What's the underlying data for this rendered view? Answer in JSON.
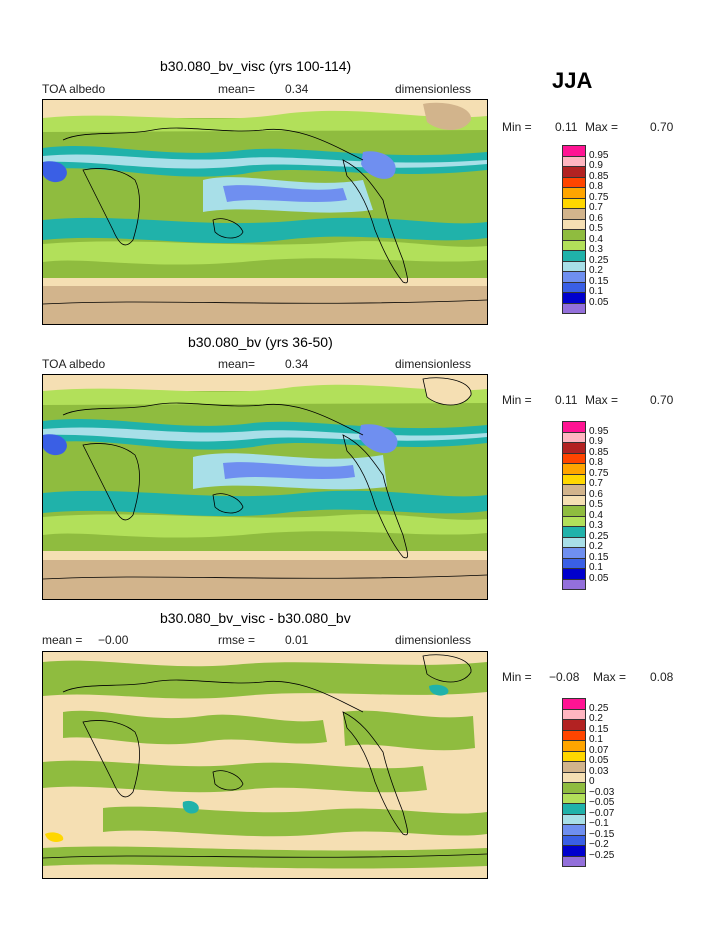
{
  "season": "JJA",
  "panels": [
    {
      "title": "b30.080_bv_visc (yrs 100-114)",
      "left_label": "TOA albedo",
      "mean_label": "mean=",
      "mean_value": "0.34",
      "units": "dimensionless",
      "min_label": "Min =",
      "min_value": "0.11",
      "max_label": "Max =",
      "max_value": "0.70"
    },
    {
      "title": "b30.080_bv (yrs 36-50)",
      "left_label": "TOA albedo",
      "mean_label": "mean=",
      "mean_value": "0.34",
      "units": "dimensionless",
      "min_label": "Min =",
      "min_value": "0.11",
      "max_label": "Max =",
      "max_value": "0.70"
    },
    {
      "title": "b30.080_bv_visc - b30.080_bv",
      "left_label": "mean =",
      "left_value": "−0.00",
      "rmse_label": "rmse =",
      "rmse_value": "0.01",
      "units": "dimensionless",
      "min_label": "Min =",
      "min_value": "−0.08",
      "max_label": "Max =",
      "max_value": "0.08"
    }
  ],
  "colors": {
    "c_005": "#9370db",
    "c_01": "#0000cd",
    "c_015": "#3a5fe5",
    "c_02": "#6f8ff0",
    "c_025": "#a8dfe8",
    "c_03": "#20b2aa",
    "c_04": "#b2e05a",
    "c_05": "#8fbc3f",
    "c_06": "#f5dfb3",
    "c_07": "#d2b48c",
    "c_075": "#ffd700",
    "c_08": "#ffa500",
    "c_085": "#ff4500",
    "c_09": "#b22222",
    "c_095": "#ffb6c1",
    "c_top": "#ff1493"
  },
  "chart_data": [
    {
      "type": "heatmap",
      "title": "b30.080_bv_visc (yrs 100-114)",
      "variable": "TOA albedo",
      "units": "dimensionless",
      "mean": 0.34,
      "min": 0.11,
      "max": 0.7,
      "legend_levels": [
        "0.95",
        "0.9",
        "0.85",
        "0.8",
        "0.75",
        "0.7",
        "0.6",
        "0.5",
        "0.4",
        "0.3",
        "0.25",
        "0.2",
        "0.15",
        "0.1",
        "0.05"
      ],
      "legend_colors": [
        "#ff1493",
        "#ffb6c1",
        "#b22222",
        "#ff4500",
        "#ffa500",
        "#ffd700",
        "#d2b48c",
        "#f5dfb3",
        "#8fbc3f",
        "#b2e05a",
        "#20b2aa",
        "#a8dfe8",
        "#6f8ff0",
        "#3a5fe5",
        "#0000cd",
        "#9370db"
      ]
    },
    {
      "type": "heatmap",
      "title": "b30.080_bv (yrs 36-50)",
      "variable": "TOA albedo",
      "units": "dimensionless",
      "mean": 0.34,
      "min": 0.11,
      "max": 0.7,
      "legend_levels": [
        "0.95",
        "0.9",
        "0.85",
        "0.8",
        "0.75",
        "0.7",
        "0.6",
        "0.5",
        "0.4",
        "0.3",
        "0.25",
        "0.2",
        "0.15",
        "0.1",
        "0.05"
      ],
      "legend_colors": [
        "#ff1493",
        "#ffb6c1",
        "#b22222",
        "#ff4500",
        "#ffa500",
        "#ffd700",
        "#d2b48c",
        "#f5dfb3",
        "#8fbc3f",
        "#b2e05a",
        "#20b2aa",
        "#a8dfe8",
        "#6f8ff0",
        "#3a5fe5",
        "#0000cd",
        "#9370db"
      ]
    },
    {
      "type": "heatmap",
      "title": "b30.080_bv_visc - b30.080_bv",
      "units": "dimensionless",
      "mean": -0.0,
      "rmse": 0.01,
      "min": -0.08,
      "max": 0.08,
      "legend_levels": [
        "0.25",
        "0.2",
        "0.15",
        "0.1",
        "0.07",
        "0.05",
        "0.03",
        "0",
        "−0.03",
        "−0.05",
        "−0.07",
        "−0.1",
        "−0.15",
        "−0.2",
        "−0.25"
      ],
      "legend_colors": [
        "#ff1493",
        "#ffb6c1",
        "#b22222",
        "#ff4500",
        "#ffa500",
        "#ffd700",
        "#d2b48c",
        "#f5dfb3",
        "#8fbc3f",
        "#b2e05a",
        "#20b2aa",
        "#a8dfe8",
        "#6f8ff0",
        "#3a5fe5",
        "#0000cd",
        "#9370db"
      ]
    }
  ]
}
